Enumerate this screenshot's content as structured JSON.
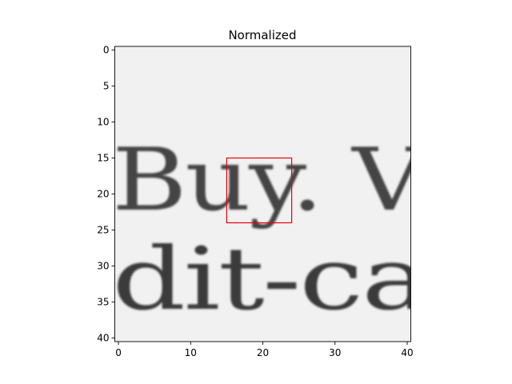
{
  "chart_data": {
    "type": "heatmap",
    "title": "Normalized",
    "colormap": "gray",
    "grid": false,
    "xlim": [
      -0.5,
      40.5
    ],
    "ylim": [
      40.5,
      -0.5
    ],
    "xticks": [
      0,
      10,
      20,
      30,
      40
    ],
    "xtick_labels": [
      "0",
      "10",
      "20",
      "30",
      "40"
    ],
    "yticks": [
      0,
      5,
      10,
      15,
      20,
      25,
      30,
      35,
      40
    ],
    "ytick_labels": [
      "0",
      "5",
      "10",
      "15",
      "20",
      "25",
      "30",
      "35",
      "40"
    ],
    "image_content_text": [
      "Buy. V",
      "dit-ca"
    ],
    "highlight_box": {
      "x0": 15,
      "y0": 15,
      "x1": 24,
      "y1": 24,
      "color": "#e8000b"
    }
  }
}
